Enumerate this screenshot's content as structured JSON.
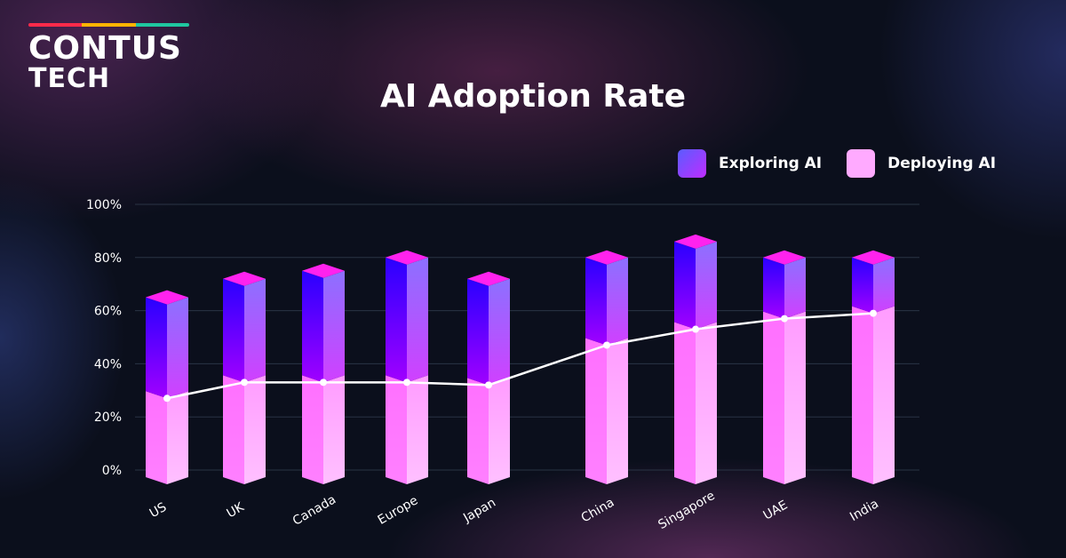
{
  "brand": {
    "line1": "CONTUS",
    "line2": "TECH",
    "stripe_colors": [
      "#ff2a4a",
      "#ffb400",
      "#1fc7a0"
    ]
  },
  "chart_data": {
    "type": "bar",
    "stacked": true,
    "title": "AI Adoption Rate",
    "categories": [
      "US",
      "UK",
      "Canada",
      "Europe",
      "Japan",
      "China",
      "Singapore",
      "UAE",
      "India"
    ],
    "series": [
      {
        "name": "Deploying AI",
        "values": [
          27,
          33,
          33,
          33,
          32,
          47,
          53,
          57,
          59
        ],
        "color": "#ff8cff"
      },
      {
        "name": "Exploring AI",
        "values": [
          38,
          39,
          42,
          47,
          40,
          33,
          33,
          23,
          21
        ],
        "color": "#8a2cff"
      }
    ],
    "line": {
      "values": [
        27,
        33,
        33,
        33,
        32,
        47,
        53,
        57,
        59
      ],
      "color": "#ffffff"
    },
    "y_ticks": [
      "0%",
      "20%",
      "40%",
      "60%",
      "80%",
      "100%"
    ],
    "ylim": [
      0,
      100
    ],
    "grid": true,
    "legend": "top-right"
  }
}
